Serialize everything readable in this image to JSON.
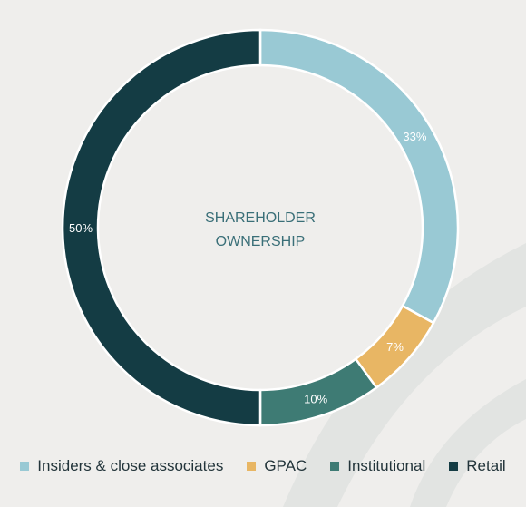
{
  "chart_data": {
    "type": "pie",
    "center_label": [
      "SHAREHOLDER",
      "OWNERSHIP"
    ],
    "categories": [
      "Insiders & close associates",
      "GPAC",
      "Institutional",
      "Retail"
    ],
    "values": [
      33,
      7,
      10,
      50
    ],
    "labels": [
      "33%",
      "7%",
      "10%",
      "50%"
    ],
    "colors": [
      "#99c9d4",
      "#e8b664",
      "#3e7b74",
      "#143c44"
    ],
    "legend_placement": "bottom"
  },
  "colors": {
    "background": "#efeeec",
    "decor_stripe": "#dfe2e0",
    "center_text": "#3a6f78",
    "slice_label": "#ffffff",
    "legend_text": "#22343a"
  }
}
